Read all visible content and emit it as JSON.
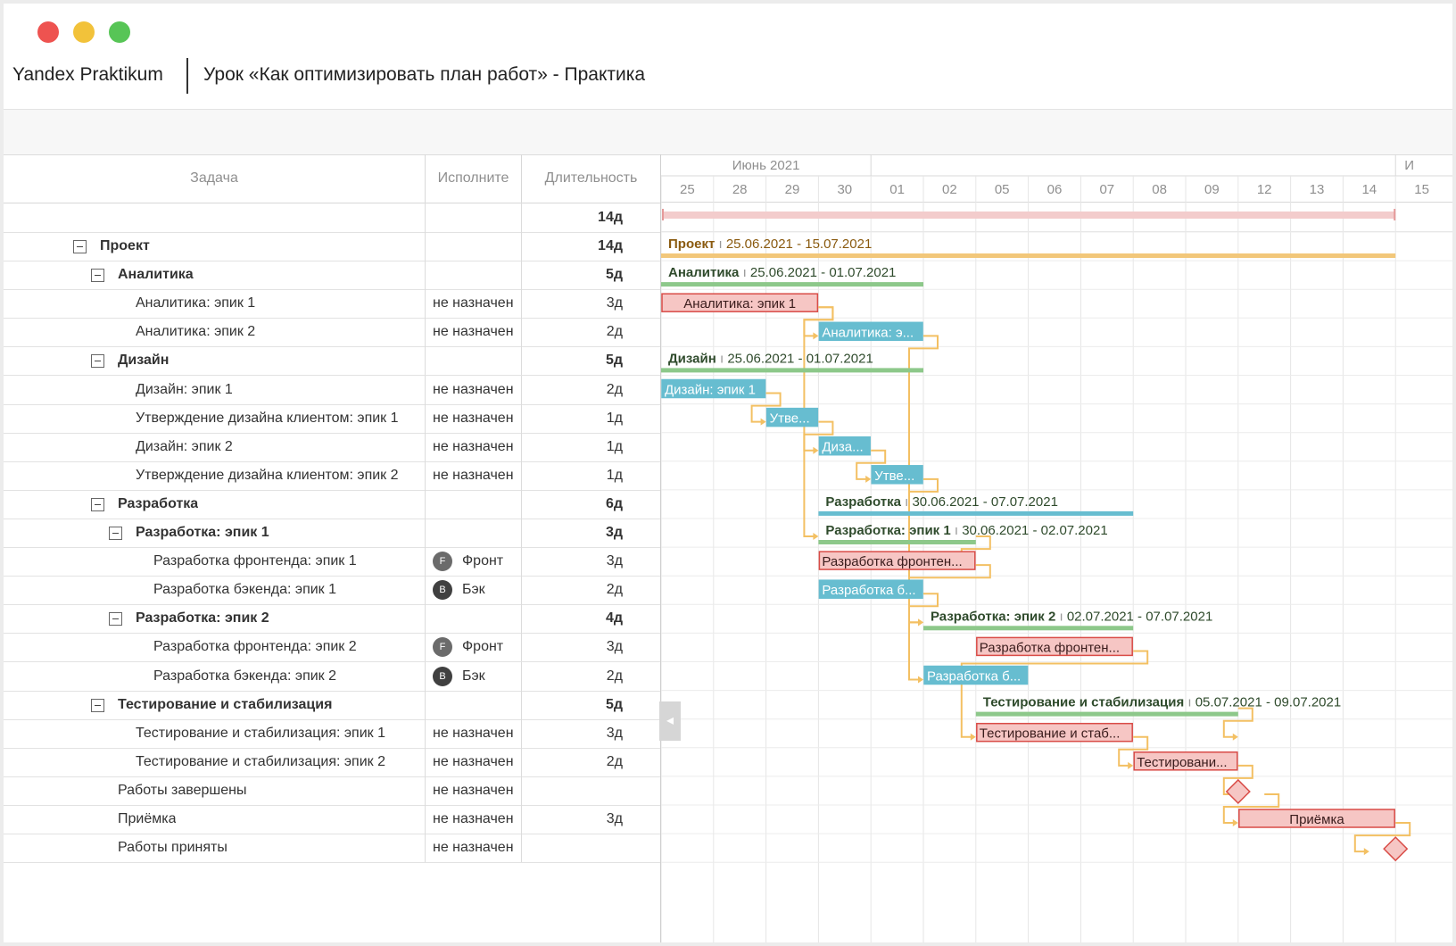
{
  "window": {
    "brand": "Yandex Praktikum",
    "title": "Урок «Как оптимизировать план работ» - Практика"
  },
  "grid": {
    "columns": {
      "task": "Задача",
      "assignee": "Исполните",
      "duration": "Длительность"
    },
    "summary_duration": "14д",
    "rows": [
      {
        "name": "Проект",
        "level": 0,
        "group": true,
        "assignee": "",
        "avatar": "",
        "duration": "14д"
      },
      {
        "name": "Аналитика",
        "level": 1,
        "group": true,
        "assignee": "",
        "avatar": "",
        "duration": "5д"
      },
      {
        "name": "Аналитика: эпик 1",
        "level": 2,
        "group": false,
        "assignee": "не назначен",
        "avatar": "",
        "duration": "3д"
      },
      {
        "name": "Аналитика: эпик 2",
        "level": 2,
        "group": false,
        "assignee": "не назначен",
        "avatar": "",
        "duration": "2д"
      },
      {
        "name": "Дизайн",
        "level": 1,
        "group": true,
        "assignee": "",
        "avatar": "",
        "duration": "5д"
      },
      {
        "name": "Дизайн: эпик 1",
        "level": 2,
        "group": false,
        "assignee": "не назначен",
        "avatar": "",
        "duration": "2д"
      },
      {
        "name": "Утверждение дизайна клиентом: эпик 1",
        "level": 2,
        "group": false,
        "assignee": "не назначен",
        "avatar": "",
        "duration": "1д"
      },
      {
        "name": "Дизайн: эпик 2",
        "level": 2,
        "group": false,
        "assignee": "не назначен",
        "avatar": "",
        "duration": "1д"
      },
      {
        "name": "Утверждение дизайна клиентом: эпик 2",
        "level": 2,
        "group": false,
        "assignee": "не назначен",
        "avatar": "",
        "duration": "1д"
      },
      {
        "name": "Разработка",
        "level": 1,
        "group": true,
        "assignee": "",
        "avatar": "",
        "duration": "6д"
      },
      {
        "name": "Разработка: эпик 1",
        "level": 2,
        "group": true,
        "assignee": "",
        "avatar": "",
        "duration": "3д"
      },
      {
        "name": "Разработка фронтенда: эпик 1",
        "level": 3,
        "group": false,
        "assignee": "Фронт",
        "avatar": "F",
        "duration": "3д"
      },
      {
        "name": "Разработка бэкенда: эпик 1",
        "level": 3,
        "group": false,
        "assignee": "Бэк",
        "avatar": "B",
        "duration": "2д"
      },
      {
        "name": "Разработка: эпик 2",
        "level": 2,
        "group": true,
        "assignee": "",
        "avatar": "",
        "duration": "4д"
      },
      {
        "name": "Разработка фронтенда: эпик 2",
        "level": 3,
        "group": false,
        "assignee": "Фронт",
        "avatar": "F",
        "duration": "3д"
      },
      {
        "name": "Разработка бэкенда: эпик 2",
        "level": 3,
        "group": false,
        "assignee": "Бэк",
        "avatar": "B",
        "duration": "2д"
      },
      {
        "name": "Тестирование и стабилизация",
        "level": 1,
        "group": true,
        "assignee": "",
        "avatar": "",
        "duration": "5д"
      },
      {
        "name": "Тестирование и стабилизация: эпик 1",
        "level": 2,
        "group": false,
        "assignee": "не назначен",
        "avatar": "",
        "duration": "3д"
      },
      {
        "name": "Тестирование и стабилизация: эпик 2",
        "level": 2,
        "group": false,
        "assignee": "не назначен",
        "avatar": "",
        "duration": "2д"
      },
      {
        "name": "Работы завершены",
        "level": 1,
        "group": false,
        "assignee": "не назначен",
        "avatar": "",
        "duration": ""
      },
      {
        "name": "Приёмка",
        "level": 1,
        "group": false,
        "assignee": "не назначен",
        "avatar": "",
        "duration": "3д"
      },
      {
        "name": "Работы приняты",
        "level": 1,
        "group": false,
        "assignee": "не назначен",
        "avatar": "",
        "duration": ""
      }
    ]
  },
  "timeline": {
    "months": [
      "Июнь 2021",
      "И"
    ],
    "days": [
      "25",
      "28",
      "29",
      "30",
      "01",
      "02",
      "05",
      "06",
      "07",
      "08",
      "09",
      "12",
      "13",
      "14",
      "15"
    ],
    "colors": {
      "summary": "#f3cccc",
      "project": "#f2c77a",
      "group": "#8dc88a",
      "dev_group": "#67bdd0",
      "task_red_fill": "#f6c6c4",
      "task_red_border": "#d94c47",
      "task_blue": "#67bdd0",
      "link": "#f3c063",
      "project_label": "#8a5a0f",
      "group_label": "#2f4b2c"
    },
    "bars": [
      {
        "row": 0,
        "type": "project",
        "start": 0,
        "end": 14,
        "title": "Проект",
        "dates": "25.06.2021 - 15.07.2021"
      },
      {
        "row": 1,
        "type": "group",
        "start": 0,
        "end": 5,
        "title": "Аналитика",
        "dates": "25.06.2021 - 01.07.2021"
      },
      {
        "row": 2,
        "type": "task-red",
        "start": 0,
        "end": 3,
        "label": "Аналитика: эпик 1"
      },
      {
        "row": 3,
        "type": "task-blue",
        "start": 3,
        "end": 5,
        "label": "Аналитика: э..."
      },
      {
        "row": 4,
        "type": "group",
        "start": 0,
        "end": 5,
        "title": "Дизайн",
        "dates": "25.06.2021 - 01.07.2021"
      },
      {
        "row": 5,
        "type": "task-blue",
        "start": 0,
        "end": 2,
        "label": "Дизайн: эпик 1"
      },
      {
        "row": 6,
        "type": "task-blue",
        "start": 2,
        "end": 3,
        "label": "Утве..."
      },
      {
        "row": 7,
        "type": "task-blue",
        "start": 3,
        "end": 4,
        "label": "Диза..."
      },
      {
        "row": 8,
        "type": "task-blue",
        "start": 4,
        "end": 5,
        "label": "Утве..."
      },
      {
        "row": 9,
        "type": "dev-group",
        "start": 3,
        "end": 9,
        "title": "Разработка",
        "dates": "30.06.2021 - 07.07.2021"
      },
      {
        "row": 10,
        "type": "group",
        "start": 3,
        "end": 6,
        "title": "Разработка: эпик 1",
        "dates": "30.06.2021 - 02.07.2021"
      },
      {
        "row": 11,
        "type": "task-red",
        "start": 3,
        "end": 6,
        "label": "Разработка фронтен..."
      },
      {
        "row": 12,
        "type": "task-blue",
        "start": 3,
        "end": 5,
        "label": "Разработка б..."
      },
      {
        "row": 13,
        "type": "group",
        "start": 5,
        "end": 9,
        "title": "Разработка: эпик 2",
        "dates": "02.07.2021 - 07.07.2021"
      },
      {
        "row": 14,
        "type": "task-red",
        "start": 6,
        "end": 9,
        "label": "Разработка фронтен..."
      },
      {
        "row": 15,
        "type": "task-blue",
        "start": 5,
        "end": 7,
        "label": "Разработка б..."
      },
      {
        "row": 16,
        "type": "group",
        "start": 6,
        "end": 11,
        "title": "Тестирование и стабилизация",
        "dates": "05.07.2021 - 09.07.2021"
      },
      {
        "row": 17,
        "type": "task-red",
        "start": 6,
        "end": 9,
        "label": "Тестирование и стаб..."
      },
      {
        "row": 18,
        "type": "task-red",
        "start": 9,
        "end": 11,
        "label": "Тестировани..."
      },
      {
        "row": 19,
        "type": "milestone",
        "start": 11,
        "end": 11
      },
      {
        "row": 20,
        "type": "task-red-center",
        "start": 11,
        "end": 14,
        "label": "Приёмка"
      },
      {
        "row": 21,
        "type": "milestone",
        "start": 14,
        "end": 14
      }
    ]
  }
}
